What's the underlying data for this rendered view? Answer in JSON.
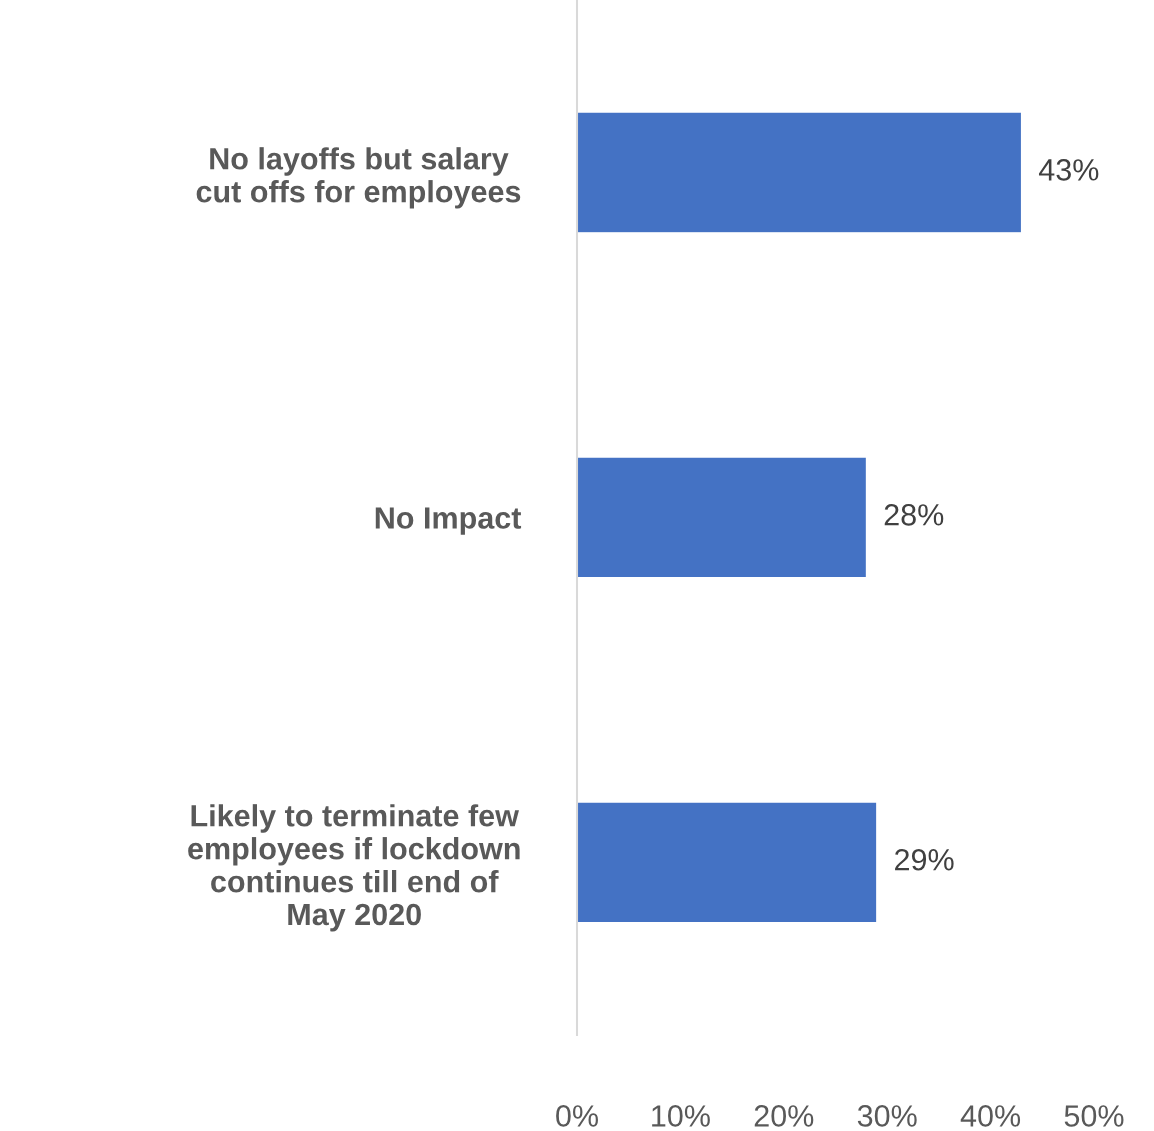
{
  "chart_data": {
    "type": "bar",
    "orientation": "horizontal",
    "categories": [
      "No layoffs but salary\ncut offs for employees",
      "No Impact",
      "Likely to terminate few\nemployees if lockdown\ncontinues till end of\nMay 2020"
    ],
    "values": [
      43,
      28,
      29
    ],
    "value_labels": [
      "43%",
      "28%",
      "29%"
    ],
    "color": "#4472c4",
    "xlim": [
      0,
      50
    ],
    "xticks": [
      {
        "value": 0,
        "label": "0%"
      },
      {
        "value": 10,
        "label": "10%"
      },
      {
        "value": 20,
        "label": "20%"
      },
      {
        "value": 30,
        "label": "30%"
      },
      {
        "value": 40,
        "label": "40%"
      },
      {
        "value": 50,
        "label": "50%"
      }
    ],
    "grid": false,
    "legend": false
  }
}
